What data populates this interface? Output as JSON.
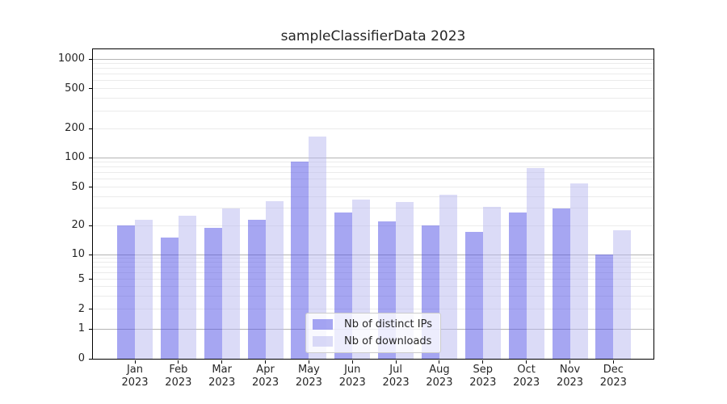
{
  "chart_data": {
    "type": "bar",
    "title": "sampleClassifierData 2023",
    "categories": [
      "Jan",
      "Feb",
      "Mar",
      "Apr",
      "May",
      "Jun",
      "Jul",
      "Aug",
      "Sep",
      "Oct",
      "Nov",
      "Dec"
    ],
    "year_label": "2023",
    "series": [
      {
        "name": "Nb of distinct IPs",
        "color": "rgba(77,77,229,0.5)",
        "values": [
          20,
          15,
          19,
          23,
          91,
          27,
          22,
          20,
          17,
          27,
          30,
          10
        ]
      },
      {
        "name": "Nb of downloads",
        "color": "rgba(183,183,239,0.5)",
        "values": [
          23,
          25,
          30,
          36,
          165,
          37,
          35,
          42,
          31,
          78,
          54,
          18
        ]
      }
    ],
    "yscale": "symlog",
    "yticks": [
      0,
      1,
      2,
      5,
      10,
      20,
      50,
      100,
      200,
      500,
      1000
    ],
    "ylim": [
      0,
      1300
    ],
    "xlabel": "",
    "ylabel": "",
    "grid": true,
    "legend_position": "lower center"
  },
  "colors": {
    "bar_distinct_ips": "rgba(77,77,229,0.5)",
    "bar_downloads": "rgba(183,183,239,0.5)",
    "grid_major": "#b4b4b4",
    "grid_minor": "#ebebeb",
    "spine": "#000000",
    "text": "#262626"
  }
}
